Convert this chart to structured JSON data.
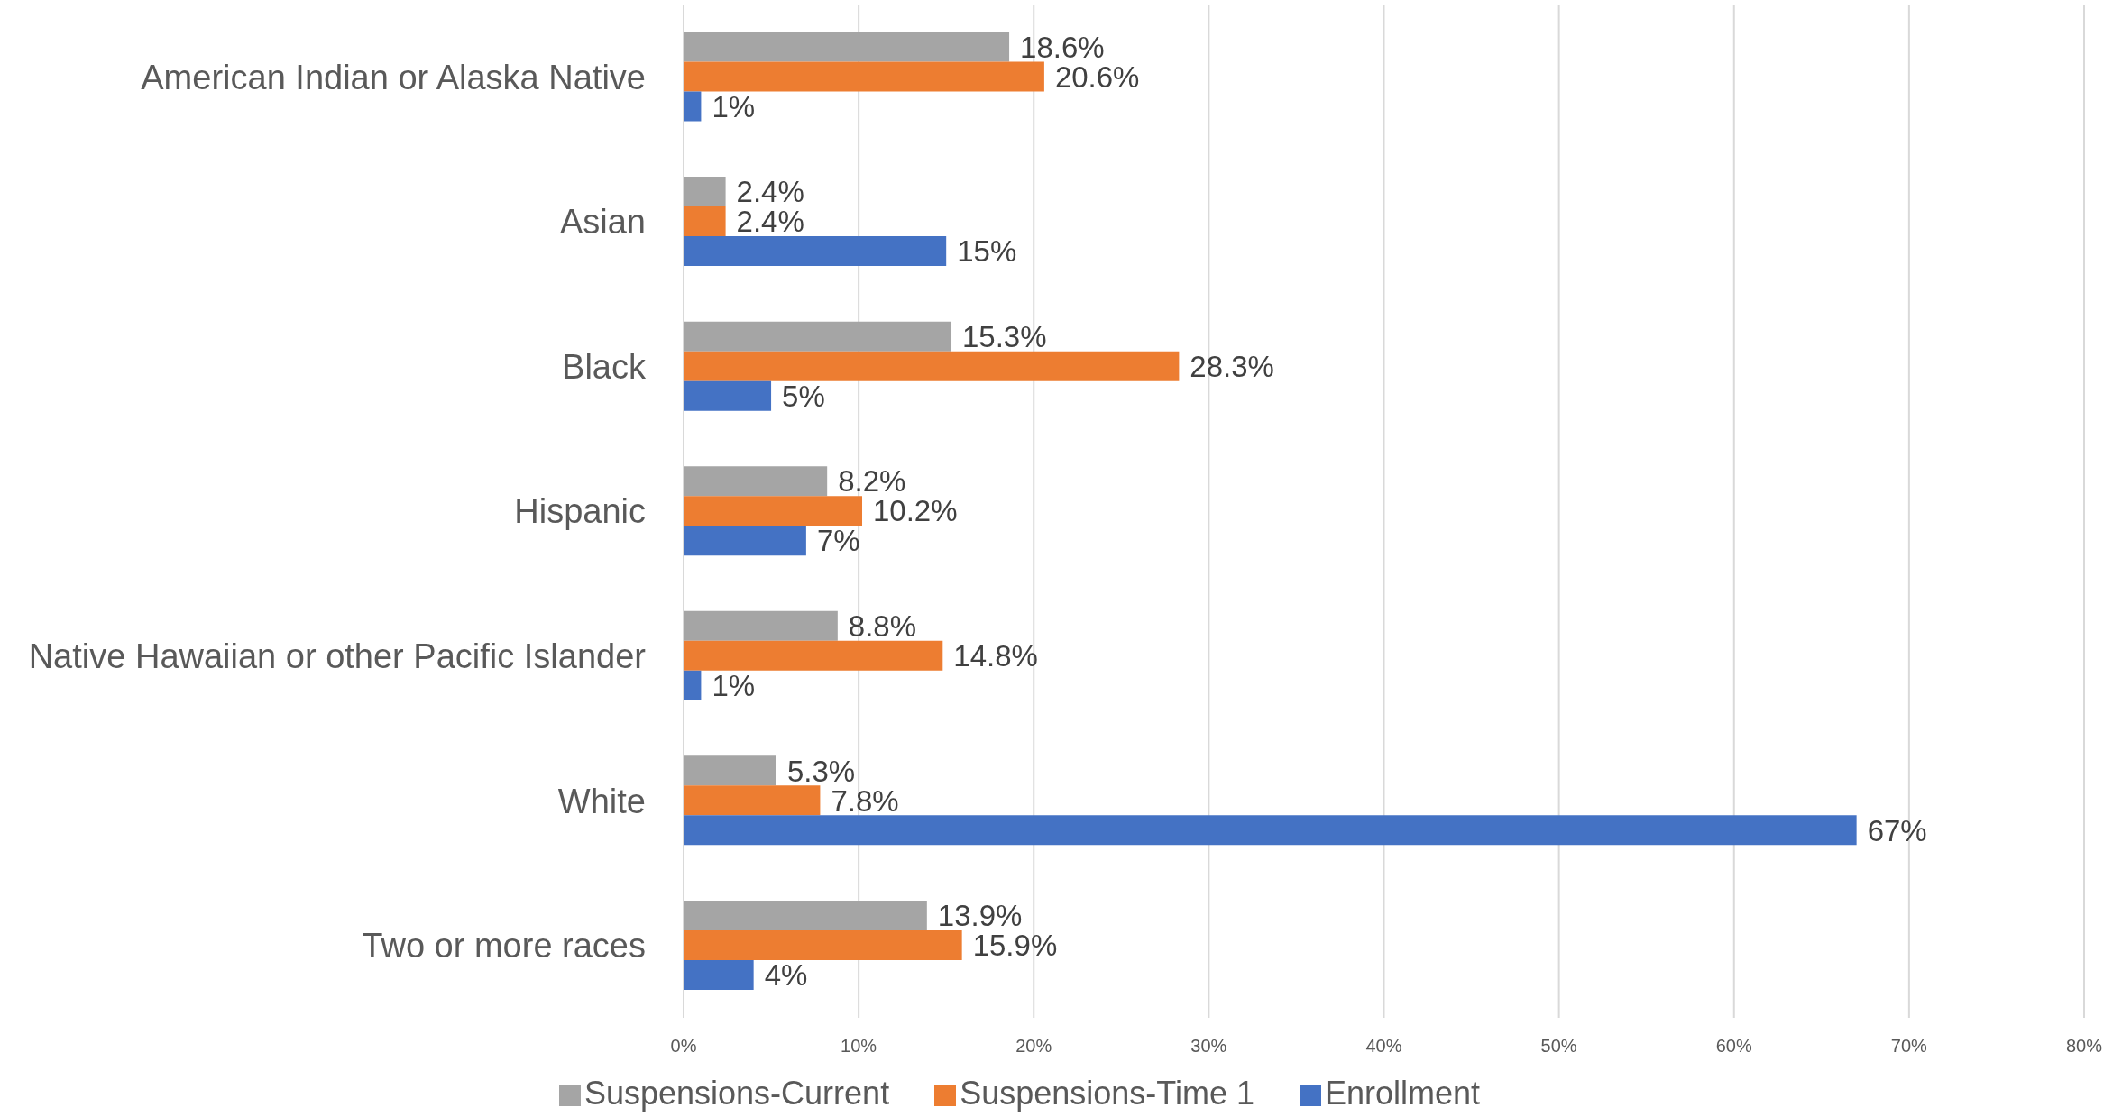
{
  "chart_data": {
    "type": "bar",
    "orientation": "horizontal",
    "categories": [
      "American Indian or Alaska Native",
      "Asian",
      "Black",
      "Hispanic",
      "Native Hawaiian or other Pacific Islander",
      "White",
      "Two or more races"
    ],
    "series": [
      {
        "name": "Suspensions-Current",
        "color": "#a5a5a5",
        "values": [
          18.6,
          2.4,
          15.3,
          8.2,
          8.8,
          5.3,
          13.9
        ],
        "value_labels": [
          "18.6%",
          "2.4%",
          "15.3%",
          "8.2%",
          "8.8%",
          "5.3%",
          "13.9%"
        ]
      },
      {
        "name": "Suspensions-Time 1",
        "color": "#ed7d31",
        "values": [
          20.6,
          2.4,
          28.3,
          10.2,
          14.8,
          7.8,
          15.9
        ],
        "value_labels": [
          "20.6%",
          "2.4%",
          "28.3%",
          "10.2%",
          "14.8%",
          "7.8%",
          "15.9%"
        ]
      },
      {
        "name": "Enrollment",
        "color": "#4472c4",
        "values": [
          1,
          15,
          5,
          7,
          1,
          67,
          4
        ],
        "value_labels": [
          "1%",
          "15%",
          "5%",
          "7%",
          "1%",
          "67%",
          "4%"
        ]
      }
    ],
    "xlim": [
      0,
      80
    ],
    "xticks": [
      {
        "value": 0,
        "label": "0%"
      },
      {
        "value": 10,
        "label": "10%"
      },
      {
        "value": 20,
        "label": "20%"
      },
      {
        "value": 30,
        "label": "30%"
      },
      {
        "value": 40,
        "label": "40%"
      },
      {
        "value": 50,
        "label": "50%"
      },
      {
        "value": 60,
        "label": "60%"
      },
      {
        "value": 70,
        "label": "70%"
      },
      {
        "value": 80,
        "label": "80%"
      }
    ],
    "grid": "x",
    "legend": "bottom"
  }
}
